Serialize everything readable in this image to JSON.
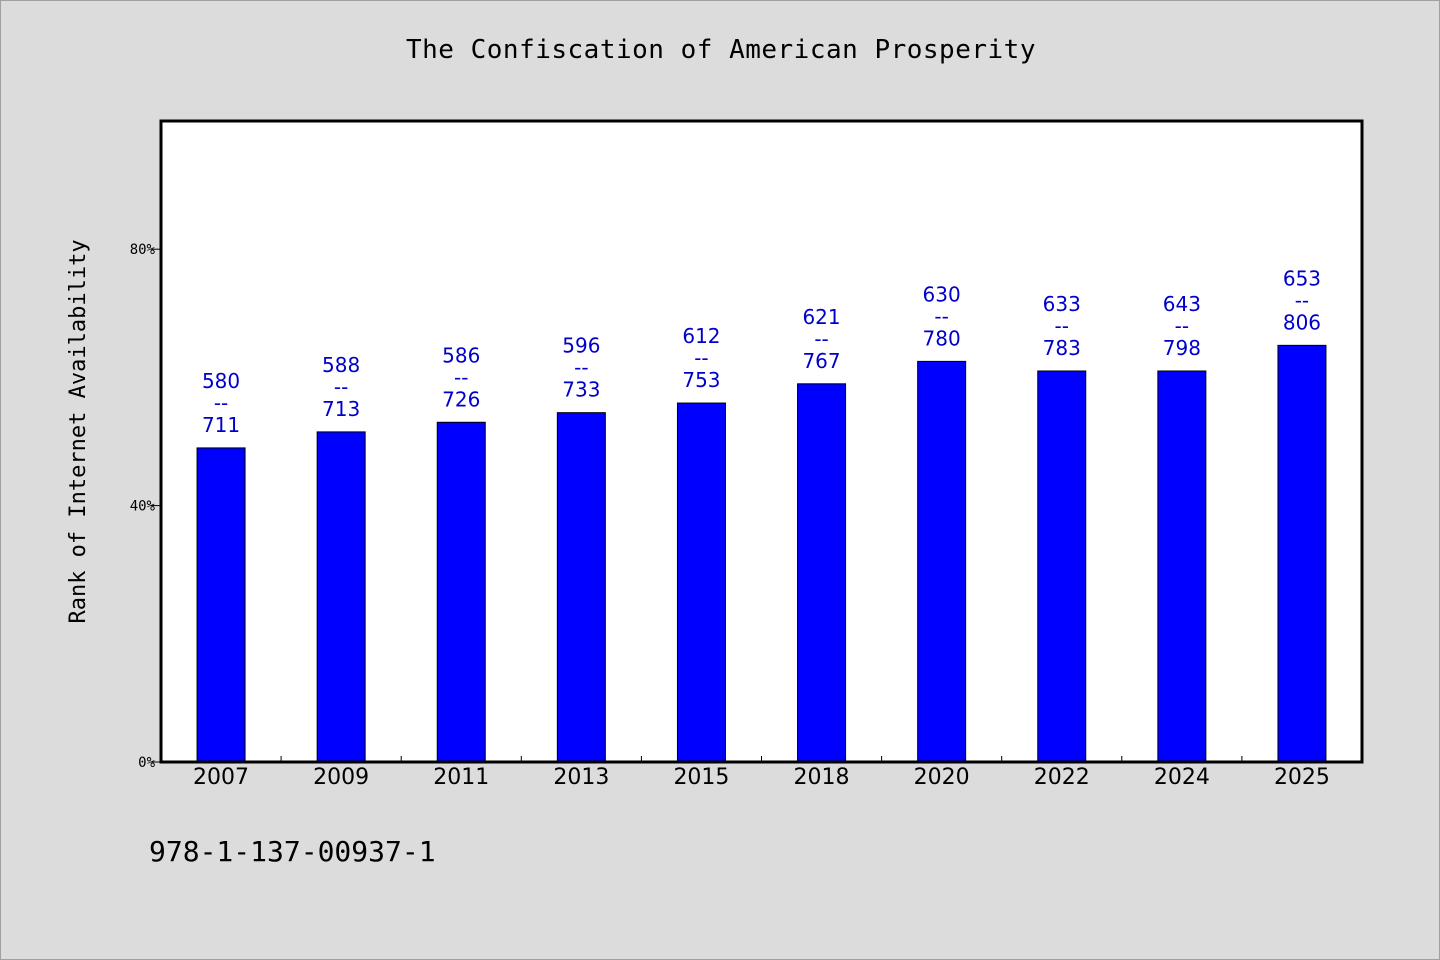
{
  "chart_data": {
    "type": "bar",
    "title": "The Confiscation of American Prosperity",
    "xlabel": "",
    "ylabel": "Rank of Internet Availability",
    "categories": [
      "2007",
      "2009",
      "2011",
      "2013",
      "2015",
      "2018",
      "2020",
      "2022",
      "2024",
      "2025"
    ],
    "values": [
      49,
      51.5,
      53,
      54.5,
      56,
      59,
      62.5,
      61,
      61,
      65
    ],
    "data_labels": [
      [
        "580",
        "--",
        "711"
      ],
      [
        "588",
        "--",
        "713"
      ],
      [
        "586",
        "--",
        "726"
      ],
      [
        "596",
        "--",
        "733"
      ],
      [
        "612",
        "--",
        "753"
      ],
      [
        "621",
        "--",
        "767"
      ],
      [
        "630",
        "--",
        "780"
      ],
      [
        "633",
        "--",
        "783"
      ],
      [
        "643",
        "--",
        "798"
      ],
      [
        "653",
        "--",
        "806"
      ]
    ],
    "yticks": [
      0,
      40,
      80
    ],
    "ytick_labels": [
      "0%",
      "40%",
      "80%"
    ],
    "ylim": [
      0,
      100
    ],
    "grid": false,
    "legend": false,
    "bar_color": "#0000ff",
    "label_color": "#0000cc"
  },
  "footer": {
    "code": "978-1-137-00937-1"
  },
  "colors": {
    "background": "#dcdcdc",
    "plot_background": "#ffffff"
  }
}
